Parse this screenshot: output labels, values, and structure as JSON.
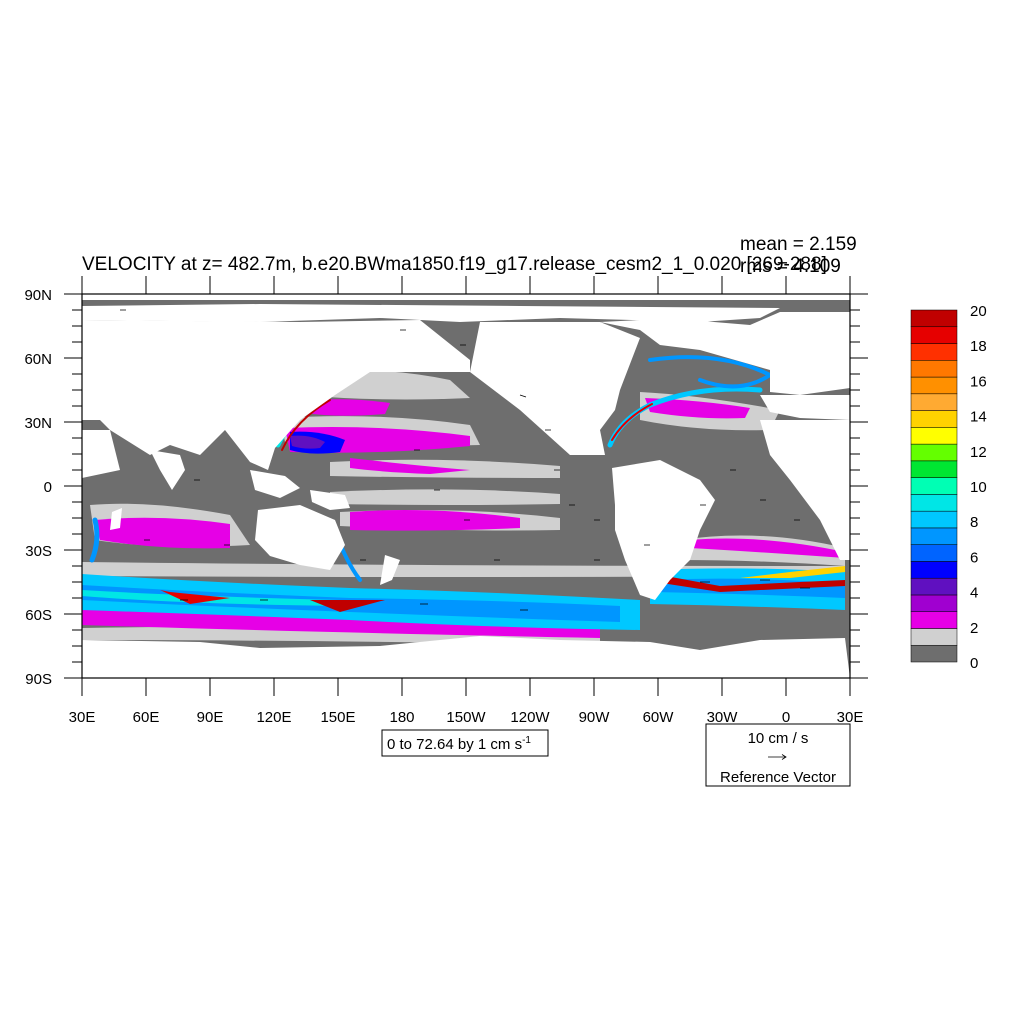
{
  "title": "VELOCITY at z= 482.7m, b.e20.BWma1850.f19_g17.release_cesm2_1_0.020 [269-288]",
  "stats": {
    "mean": "mean = 2.159",
    "rms": "rms = 4.109"
  },
  "lat_labels": [
    "90N",
    "60N",
    "30N",
    "0",
    "30S",
    "60S",
    "90S"
  ],
  "lon_labels": [
    "30E",
    "60E",
    "90E",
    "120E",
    "150E",
    "180",
    "150W",
    "120W",
    "90W",
    "60W",
    "30W",
    "0",
    "30E"
  ],
  "colorbar": {
    "labels": [
      "20",
      "18",
      "16",
      "14",
      "12",
      "10",
      "8",
      "6",
      "4",
      "2",
      "0"
    ],
    "colors": [
      "#6e6e6e",
      "#d0d0d0",
      "#e600e6",
      "#a000d0",
      "#6010c0",
      "#0000ff",
      "#0064ff",
      "#0096ff",
      "#00c8ff",
      "#00e6e6",
      "#00ffb4",
      "#00e632",
      "#64ff00",
      "#ffff00",
      "#ffd200",
      "#ffaa32",
      "#ff9000",
      "#ff7800",
      "#ff3000",
      "#e60000",
      "#c00000"
    ]
  },
  "contour_info": {
    "prefix": "0 to 72.64 by 1 cm s",
    "sup": "-1"
  },
  "reference_vector": {
    "magnitude": "10 cm / s",
    "label": "Reference Vector"
  },
  "colors": {
    "land": "#ffffff",
    "low_speed": "#6e6e6e",
    "light": "#d0d0d0",
    "frame": "#000000"
  }
}
